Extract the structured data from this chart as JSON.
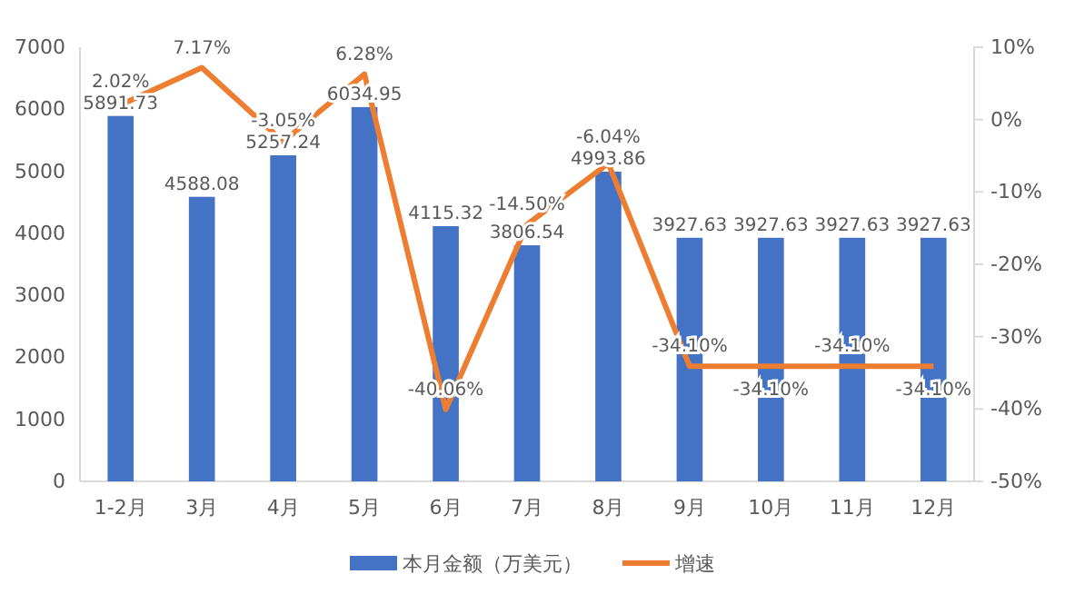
{
  "chart_data": {
    "type": "bar",
    "categories": [
      "1-2月",
      "3月",
      "4月",
      "5月",
      "6月",
      "7月",
      "8月",
      "9月",
      "10月",
      "11月",
      "12月"
    ],
    "series": [
      {
        "name": "本月金额（万美元）",
        "color": "#4472c4",
        "values": [
          5891.73,
          4588.08,
          5257.24,
          6034.95,
          4115.32,
          3806.54,
          4993.86,
          3927.63,
          3927.63,
          3927.63,
          3927.63
        ],
        "value_labels": [
          "5891.73",
          "4588.08",
          "5257.24",
          "6034.95",
          "4115.32",
          "3806.54",
          "4993.86",
          "3927.63",
          "3927.63",
          "3927.63",
          "3927.63"
        ]
      },
      {
        "name": "增速",
        "type": "line",
        "axis": "y2",
        "color": "#ed7d31",
        "values": [
          2.02,
          7.17,
          -3.05,
          6.28,
          -40.06,
          -14.5,
          -6.04,
          -34.1,
          -34.1,
          -34.1,
          -34.1
        ],
        "value_labels": [
          "2.02%",
          "7.17%",
          "-3.05%",
          "6.28%",
          "-40.06%",
          "-14.50%",
          "-6.04%",
          "-34.10%",
          "-34.10%",
          "-34.10%",
          "-34.10%"
        ]
      }
    ],
    "ylim": [
      0,
      7000
    ],
    "yticks": [
      0,
      1000,
      2000,
      3000,
      4000,
      5000,
      6000,
      7000
    ],
    "y2lim": [
      -50,
      10
    ],
    "y2ticks": [
      {
        "value": -50,
        "label": "-50%"
      },
      {
        "value": -40,
        "label": "-40%"
      },
      {
        "value": -30,
        "label": "-30%"
      },
      {
        "value": -20,
        "label": "-20%"
      },
      {
        "value": -10,
        "label": "-10%"
      },
      {
        "value": 0,
        "label": "0%"
      },
      {
        "value": 10,
        "label": "10%"
      }
    ],
    "legend": "bottom",
    "grid": false,
    "marker": "none",
    "line_style": "solid"
  }
}
